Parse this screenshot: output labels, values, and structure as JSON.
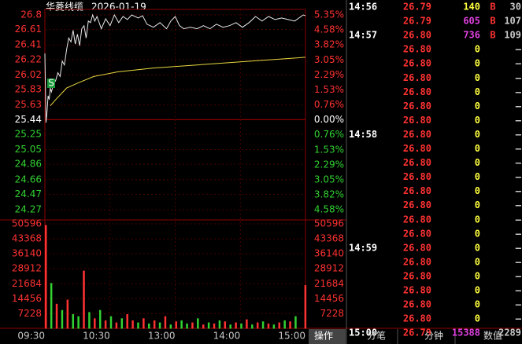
{
  "header": {
    "name": "华菱线缆",
    "date": "2026-01-19"
  },
  "price_chart": {
    "type": "line",
    "marker": "S",
    "ylim": [
      24.27,
      26.8
    ],
    "y2lim": [
      -4.58,
      5.35
    ],
    "xlim": [
      0,
      240
    ],
    "yticks": [
      26.8,
      26.61,
      26.41,
      26.22,
      26.02,
      25.83,
      25.63,
      25.44,
      25.25,
      25.05,
      24.86,
      24.66,
      24.47,
      24.27
    ],
    "y2ticks": [
      {
        "value": 5.35,
        "label": "5.35%"
      },
      {
        "value": 4.58,
        "label": "4.58%"
      },
      {
        "value": 3.82,
        "label": "3.82%"
      },
      {
        "value": 3.05,
        "label": "3.05%"
      },
      {
        "value": 2.29,
        "label": "2.29%"
      },
      {
        "value": 1.53,
        "label": "1.53%"
      },
      {
        "value": 0.76,
        "label": "0.76%"
      },
      {
        "value": 0,
        "label": "0.00%"
      },
      {
        "value": -0.76,
        "label": "0.76%"
      },
      {
        "value": -1.53,
        "label": "1.53%"
      },
      {
        "value": -2.29,
        "label": "2.29%"
      },
      {
        "value": -3.05,
        "label": "3.05%"
      },
      {
        "value": -3.82,
        "label": "3.82%"
      },
      {
        "value": -4.58,
        "label": "4.58%"
      }
    ],
    "xticks": [
      {
        "value": 0,
        "label": "09:30"
      },
      {
        "value": 60,
        "label": "10:30"
      },
      {
        "value": 120,
        "label": "13:00"
      },
      {
        "value": 180,
        "label": "14:00"
      },
      {
        "value": 240,
        "label": "15:00"
      }
    ],
    "up_color": "#ff3232",
    "down_color": "#32d232",
    "flat_color": "#ffffff",
    "series": [
      {
        "color": "#e8e8e8",
        "x": [
          0,
          1,
          2,
          3,
          4,
          5,
          6,
          8,
          10,
          12,
          14,
          16,
          18,
          20,
          22,
          24,
          26,
          28,
          30,
          32,
          34,
          36,
          38,
          40,
          42,
          44,
          46,
          48,
          52,
          56,
          60,
          64,
          68,
          72,
          76,
          80,
          86,
          90,
          94,
          100,
          106,
          112,
          116,
          120,
          124,
          128,
          134,
          140,
          146,
          152,
          158,
          164,
          170,
          176,
          182,
          188,
          194,
          200,
          206,
          212,
          218,
          224,
          230,
          234,
          238,
          240
        ],
        "values": [
          26.3,
          25.4,
          25.55,
          25.75,
          25.7,
          25.85,
          25.8,
          25.9,
          25.95,
          26.05,
          26.0,
          26.2,
          26.15,
          26.35,
          26.5,
          26.45,
          26.6,
          26.42,
          26.55,
          26.4,
          26.62,
          26.66,
          26.5,
          26.72,
          26.7,
          26.8,
          26.72,
          26.78,
          26.62,
          26.75,
          26.66,
          26.8,
          26.7,
          26.78,
          26.74,
          26.8,
          26.76,
          26.79,
          26.68,
          26.64,
          26.7,
          26.62,
          26.72,
          26.78,
          26.66,
          26.62,
          26.64,
          26.62,
          26.66,
          26.62,
          26.68,
          26.64,
          26.66,
          26.7,
          26.64,
          26.7,
          26.78,
          26.72,
          26.78,
          26.74,
          26.76,
          26.74,
          26.72,
          26.76,
          26.8,
          26.79
        ]
      },
      {
        "color": "#e8d840",
        "x": [
          5,
          10,
          20,
          31,
          45,
          67,
          100,
          140,
          180,
          210,
          240
        ],
        "values": [
          25.62,
          25.7,
          25.85,
          25.92,
          26.0,
          26.06,
          26.11,
          26.15,
          26.19,
          26.22,
          26.25
        ]
      }
    ]
  },
  "volume_chart": {
    "type": "bar",
    "ylim": [
      0,
      50596
    ],
    "yticks": [
      50596,
      43368,
      36140,
      28912,
      21684,
      14456,
      7228
    ],
    "x": [
      0,
      5,
      10,
      15,
      20,
      25,
      30,
      35,
      40,
      45,
      50,
      55,
      60,
      65,
      70,
      75,
      80,
      85,
      90,
      95,
      100,
      105,
      110,
      115,
      120,
      125,
      130,
      135,
      140,
      145,
      150,
      155,
      160,
      165,
      170,
      175,
      180,
      185,
      190,
      195,
      200,
      205,
      210,
      215,
      220,
      225,
      230,
      239
    ],
    "values": [
      50000,
      22000,
      12000,
      9000,
      14000,
      7000,
      6000,
      28000,
      8000,
      5000,
      9000,
      4000,
      6000,
      3000,
      5000,
      7000,
      4000,
      3000,
      5000,
      2500,
      4000,
      3000,
      6000,
      2000,
      3500,
      4000,
      2500,
      3000,
      5000,
      2000,
      3000,
      2500,
      4000,
      3500,
      2000,
      3000,
      2500,
      4500,
      2000,
      3000,
      3500,
      2500,
      2000,
      3000,
      4000,
      3500,
      6000,
      21000
    ],
    "colors": [
      "#ff3232",
      "#32d232",
      "#ff3232",
      "#32d232",
      "#ff3232",
      "#32d232",
      "#32d232",
      "#ff3232",
      "#32d232",
      "#ff3232",
      "#32d232",
      "#ff3232",
      "#32d232",
      "#ff3232",
      "#32d232",
      "#ff3232",
      "#ff3232",
      "#32d232",
      "#ff3232",
      "#32d232",
      "#ff3232",
      "#32d232",
      "#ff3232",
      "#32d232",
      "#ff3232",
      "#32d232",
      "#32d232",
      "#ff3232",
      "#32d232",
      "#ff3232",
      "#32d232",
      "#ff3232",
      "#32d232",
      "#ff3232",
      "#32d232",
      "#ff3232",
      "#32d232",
      "#ff3232",
      "#32d232",
      "#ff3232",
      "#32d232",
      "#ff3232",
      "#32d232",
      "#ff3232",
      "#32d232",
      "#ff3232",
      "#32d232",
      "#ff3232"
    ]
  },
  "ticks": [
    {
      "time": "14:56",
      "price": "26.79",
      "volume": "140",
      "flag": "B",
      "count": "30"
    },
    {
      "price": "26.79",
      "volume": "605",
      "flag": "B",
      "count": "107"
    },
    {
      "time": "14:57",
      "price": "26.80",
      "volume": "736",
      "flag": "B",
      "count": "109"
    },
    {
      "price": "26.80",
      "volume": "0",
      "count": "–"
    },
    {
      "price": "26.80",
      "volume": "0",
      "count": "–"
    },
    {
      "price": "26.80",
      "volume": "0",
      "count": "–"
    },
    {
      "price": "26.80",
      "volume": "0",
      "count": "–"
    },
    {
      "price": "26.80",
      "volume": "0",
      "count": "–"
    },
    {
      "price": "26.80",
      "volume": "0",
      "count": "–"
    },
    {
      "time": "14:58",
      "price": "26.80",
      "volume": "0",
      "count": "–"
    },
    {
      "price": "26.80",
      "volume": "0",
      "count": "–"
    },
    {
      "price": "26.80",
      "volume": "0",
      "count": "–"
    },
    {
      "price": "26.80",
      "volume": "0",
      "count": "–"
    },
    {
      "price": "26.80",
      "volume": "0",
      "count": "–"
    },
    {
      "price": "26.80",
      "volume": "0",
      "count": "–"
    },
    {
      "price": "26.80",
      "volume": "0",
      "count": "–"
    },
    {
      "price": "26.80",
      "volume": "0",
      "count": "–"
    },
    {
      "time": "14:59",
      "price": "26.80",
      "volume": "0",
      "count": "–"
    },
    {
      "price": "26.80",
      "volume": "0",
      "count": "–"
    },
    {
      "price": "26.80",
      "volume": "0",
      "count": "–"
    },
    {
      "price": "26.80",
      "volume": "0",
      "count": "–"
    },
    {
      "price": "26.80",
      "volume": "0",
      "count": "–"
    },
    {
      "price": "26.80",
      "volume": "0",
      "count": "–"
    },
    {
      "time": "15:00",
      "price": "26.79",
      "volume": "15388",
      "count": "2289"
    }
  ],
  "tabs": [
    "操作",
    "分笔",
    "分钟",
    "数值"
  ]
}
